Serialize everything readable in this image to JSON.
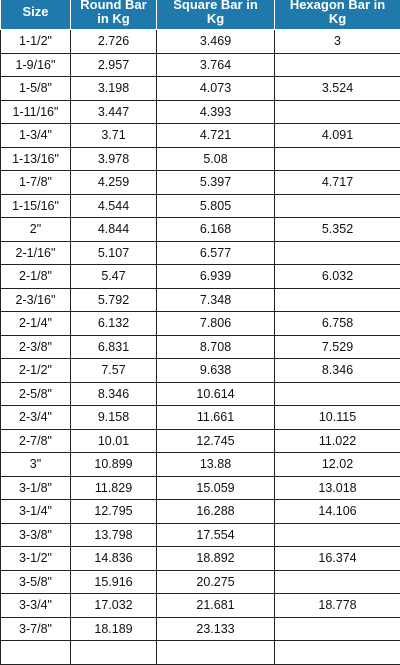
{
  "table": {
    "headers": {
      "size": {
        "l1": "",
        "l2": "Size"
      },
      "round": {
        "l1": "Round Bar",
        "l2": "in Kg"
      },
      "square": {
        "l1": "Square Bar in",
        "l2": "Kg"
      },
      "hex": {
        "l1": "Hexagon Bar in",
        "l2": "Kg"
      }
    },
    "rows": [
      [
        "1-1/2\"",
        "2.726",
        "3.469",
        "3"
      ],
      [
        "1-9/16\"",
        "2.957",
        "3.764",
        ""
      ],
      [
        "1-5/8\"",
        "3.198",
        "4.073",
        "3.524"
      ],
      [
        "1-11/16\"",
        "3.447",
        "4.393",
        ""
      ],
      [
        "1-3/4\"",
        "3.71",
        "4.721",
        "4.091"
      ],
      [
        "1-13/16\"",
        "3.978",
        "5.08",
        ""
      ],
      [
        "1-7/8\"",
        "4.259",
        "5.397",
        "4.717"
      ],
      [
        "1-15/16\"",
        "4.544",
        "5.805",
        ""
      ],
      [
        "2\"",
        "4.844",
        "6.168",
        "5.352"
      ],
      [
        "2-1/16\"",
        "5.107",
        "6.577",
        ""
      ],
      [
        "2-1/8\"",
        "5.47",
        "6.939",
        "6.032"
      ],
      [
        "2-3/16\"",
        "5.792",
        "7.348",
        ""
      ],
      [
        "2-1/4\"",
        "6.132",
        "7.806",
        "6.758"
      ],
      [
        "2-3/8\"",
        "6.831",
        "8.708",
        "7.529"
      ],
      [
        "2-1/2\"",
        "7.57",
        "9.638",
        "8.346"
      ],
      [
        "2-5/8\"",
        "8.346",
        "10.614",
        ""
      ],
      [
        "2-3/4\"",
        "9.158",
        "11.661",
        "10.115"
      ],
      [
        "2-7/8\"",
        "10.01",
        "12.745",
        "11.022"
      ],
      [
        "3\"",
        "10.899",
        "13.88",
        "12.02"
      ],
      [
        "3-1/8\"",
        "11.829",
        "15.059",
        "13.018"
      ],
      [
        "3-1/4\"",
        "12.795",
        "16.288",
        "14.106"
      ],
      [
        "3-3/8\"",
        "13.798",
        "17.554",
        ""
      ],
      [
        "3-1/2\"",
        "14.836",
        "18.892",
        "16.374"
      ],
      [
        "3-5/8\"",
        "15.916",
        "20.275",
        ""
      ],
      [
        "3-3/4\"",
        "17.032",
        "21.681",
        "18.778"
      ],
      [
        "3-7/8\"",
        "18.189",
        "23.133",
        ""
      ],
      [
        "",
        "",
        "",
        ""
      ]
    ]
  },
  "colors": {
    "header_bg": "#1f7aab",
    "header_text": "#ffffff",
    "border": "#222222"
  }
}
